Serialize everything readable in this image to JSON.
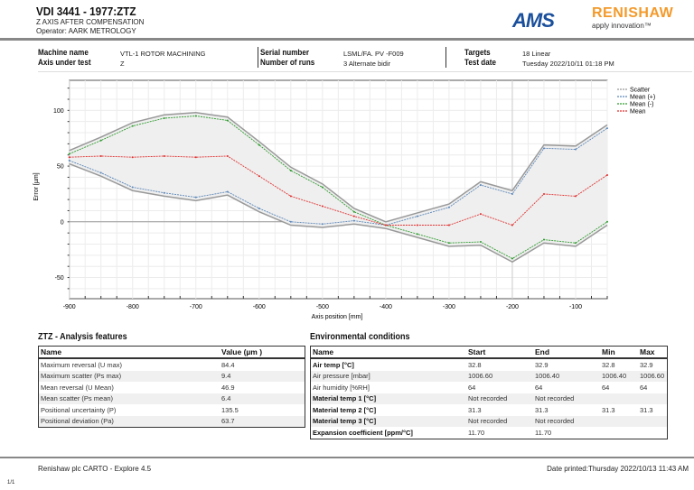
{
  "header": {
    "title": "VDI 3441 - 1977:ZTZ",
    "subtitle": "Z AXIS AFTER COMPENSATION",
    "operator": "Operator: AARK METROLOGY",
    "logo_ams": "AMS",
    "logo_renishaw": "RENISHAW",
    "tagline": "apply innovation™"
  },
  "info": {
    "machine_name_label": "Machine name",
    "machine_name": "VTL-1 ROTOR MACHINING",
    "axis_label": "Axis under test",
    "axis": "Z",
    "serial_label": "Serial number",
    "serial": "LSML/FA. PV -F009",
    "runs_label": "Number of runs",
    "runs": "3 Alternate bidir",
    "targets_label": "Targets",
    "targets": "18 Linear",
    "date_label": "Test date",
    "date": "Tuesday 2022/10/11 01:18 PM"
  },
  "chart_data": {
    "type": "line",
    "xlabel": "Axis position [mm]",
    "ylabel": "Error [µm]",
    "xlim": [
      -900,
      -50
    ],
    "ylim": [
      -69,
      127
    ],
    "xticks": [
      -900,
      -800,
      -700,
      -600,
      -500,
      -400,
      -300,
      -200,
      -100
    ],
    "yticks": [
      -50,
      0,
      50,
      100
    ],
    "grid": true,
    "legend": "top-right",
    "x": [
      -900,
      -850,
      -800,
      -750,
      -700,
      -650,
      -600,
      -550,
      -500,
      -450,
      -400,
      -350,
      -300,
      -250,
      -200,
      -150,
      -100,
      -50
    ],
    "series": [
      {
        "name": "Mean (+)",
        "color": "#5b86b8",
        "values": [
          55,
          44,
          31,
          26,
          22,
          27,
          12,
          0,
          -2,
          1,
          -3,
          5,
          13,
          33,
          25,
          66,
          65,
          84
        ]
      },
      {
        "name": "Mean (-)",
        "color": "#2e9a2e",
        "values": [
          61,
          73,
          86,
          93,
          95,
          91,
          69,
          46,
          31,
          9,
          -3,
          -11,
          -19,
          -18,
          -33,
          -16,
          -19,
          0
        ]
      },
      {
        "name": "Mean",
        "color": "#e03030",
        "values": [
          58,
          59,
          58,
          59,
          58,
          59,
          41,
          23,
          14,
          5,
          -3,
          -3,
          -3,
          7,
          -3,
          25,
          23,
          42
        ]
      }
    ],
    "scatter_name": "Scatter",
    "scatter_color": "#999999"
  },
  "analysis": {
    "title": "ZTZ - Analysis features",
    "headers": [
      "Name",
      "Value (µm )"
    ],
    "rows": [
      [
        "Maximum reversal (U max)",
        "84.4"
      ],
      [
        "Maximum scatter (Ps max)",
        "9.4"
      ],
      [
        "Mean reversal (U Mean)",
        "46.9"
      ],
      [
        "Mean scatter (Ps mean)",
        "6.4"
      ],
      [
        "Positional uncertainty (P)",
        "135.5"
      ],
      [
        "Positional deviation (Pa)",
        "63.7"
      ]
    ]
  },
  "environment": {
    "title": "Environmental conditions",
    "headers": [
      "Name",
      "Start",
      "End",
      "Min",
      "Max"
    ],
    "rows": [
      [
        "Air temp [°C]",
        "32.8",
        "32.9",
        "32.8",
        "32.9"
      ],
      [
        "Air pressure [mbar]",
        "1006.60",
        "1006.40",
        "1006.40",
        "1006.60"
      ],
      [
        "Air humidity [%RH]",
        "64",
        "64",
        "64",
        "64"
      ],
      [
        "Material temp 1 [°C]",
        "Not recorded",
        "Not recorded",
        "",
        ""
      ],
      [
        "Material temp 2 [°C]",
        "31.3",
        "31.3",
        "31.3",
        "31.3"
      ],
      [
        "Material temp 3 [°C]",
        "Not recorded",
        "Not recorded",
        "",
        ""
      ],
      [
        "Expansion coefficient [ppm/°C]",
        "11.70",
        "11.70",
        "",
        ""
      ]
    ]
  },
  "footer": {
    "software": "Renishaw plc CARTO - Explore 4.5",
    "printed": "Date printed:Thursday 2022/10/13 11:43 AM",
    "page": "1/1"
  }
}
